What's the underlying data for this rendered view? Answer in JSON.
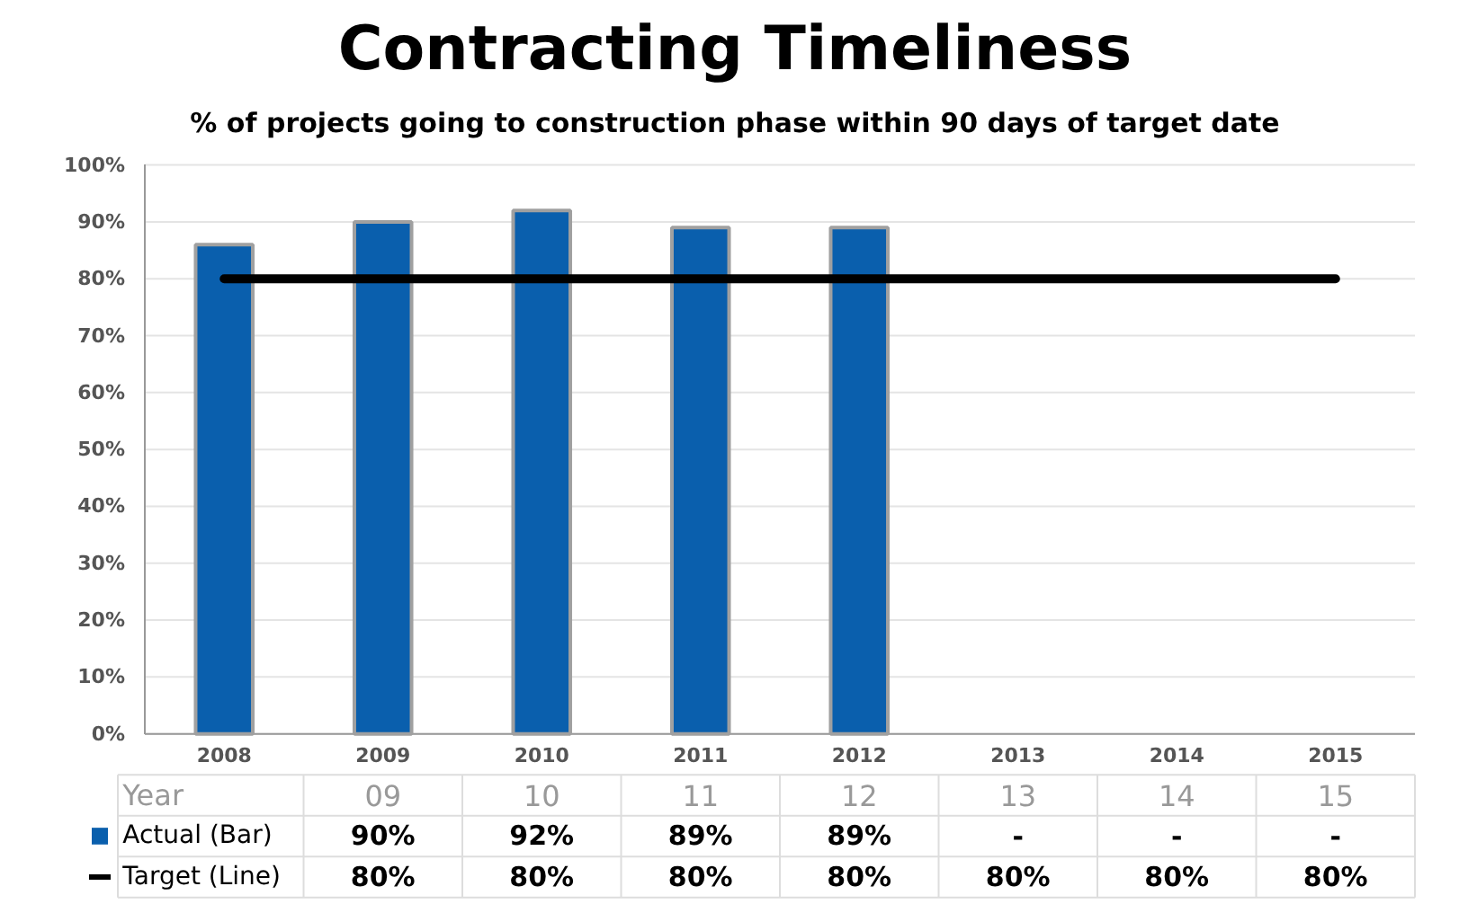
{
  "chart_data": {
    "type": "bar",
    "title": "Contracting Timeliness",
    "subtitle": "% of projects going to construction phase within 90 days of target date",
    "categories": [
      "2008",
      "2009",
      "2010",
      "2011",
      "2012",
      "2013",
      "2014",
      "2015"
    ],
    "series": [
      {
        "name": "Actual (Bar)",
        "color": "#0a5fad",
        "values": [
          86,
          90,
          92,
          89,
          89,
          null,
          null,
          null
        ],
        "value_labels": [
          null,
          "90%",
          "92%",
          "89%",
          "89%",
          "-",
          "-",
          "-"
        ]
      },
      {
        "name": "Target (Line)",
        "type": "line",
        "color": "#000000",
        "values": [
          80,
          80,
          80,
          80,
          80,
          80,
          80,
          80
        ],
        "value_labels": [
          null,
          "80%",
          "80%",
          "80%",
          "80%",
          "80%",
          "80%",
          "80%"
        ]
      }
    ],
    "annotations": [
      "Year",
      null,
      "09",
      "10",
      "11",
      "12",
      "13",
      "14",
      "15"
    ],
    "ylim": [
      0,
      100
    ],
    "yticks": [
      {
        "value": 0,
        "label": "0%"
      },
      {
        "value": 10,
        "label": "10%"
      },
      {
        "value": 20,
        "label": "20%"
      },
      {
        "value": 30,
        "label": "30%"
      },
      {
        "value": 40,
        "label": "40%"
      },
      {
        "value": 50,
        "label": "50%"
      },
      {
        "value": 60,
        "label": "60%"
      },
      {
        "value": 70,
        "label": "70%"
      },
      {
        "value": 80,
        "label": "80%"
      },
      {
        "value": 90,
        "label": "90%"
      },
      {
        "value": 100,
        "label": "100%"
      }
    ],
    "grid": "y",
    "legend": "bottom left"
  }
}
